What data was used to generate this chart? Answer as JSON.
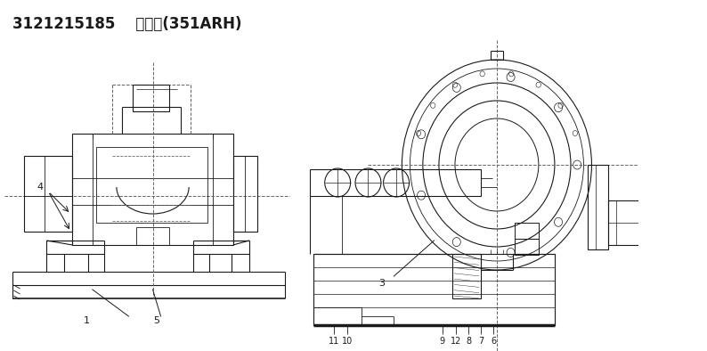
{
  "title": "3121215185    回转头(351ARH)",
  "bg_color": "#ffffff",
  "line_color": "#1a1a1a",
  "dashed_color": "#666666",
  "title_fontsize": 12,
  "label_fontsize": 7.5
}
